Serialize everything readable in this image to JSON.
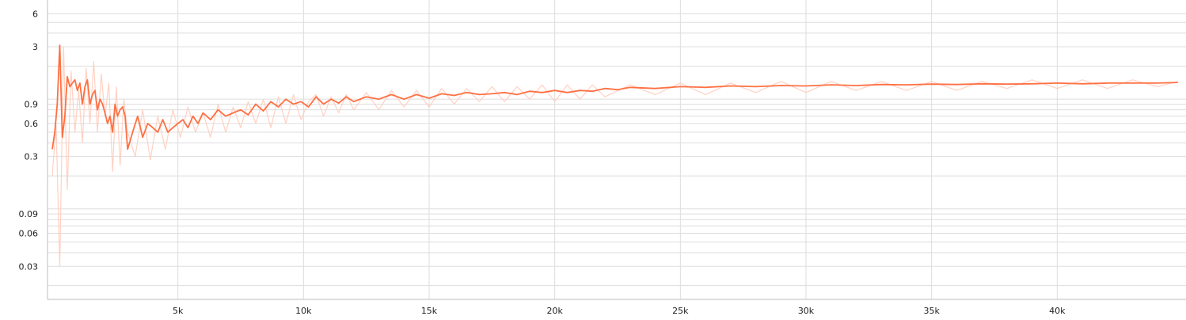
{
  "chart_data": {
    "type": "line",
    "title": "",
    "xlabel": "",
    "ylabel": "",
    "x_scale": "linear",
    "y_scale": "log",
    "xlim": [
      0,
      45000
    ],
    "ylim": [
      0.015,
      8
    ],
    "x_ticks": [
      {
        "value": 5000,
        "label": "5k"
      },
      {
        "value": 10000,
        "label": "10k"
      },
      {
        "value": 15000,
        "label": "15k"
      },
      {
        "value": 20000,
        "label": "20k"
      },
      {
        "value": 25000,
        "label": "25k"
      },
      {
        "value": 30000,
        "label": "30k"
      },
      {
        "value": 35000,
        "label": "35k"
      },
      {
        "value": 40000,
        "label": "40k"
      }
    ],
    "y_ticks": [
      {
        "value": 6,
        "label": "6"
      },
      {
        "value": 3,
        "label": "3"
      },
      {
        "value": 0.9,
        "label": "0.9"
      },
      {
        "value": 0.6,
        "label": "0.6"
      },
      {
        "value": 0.3,
        "label": "0.3"
      },
      {
        "value": 0.09,
        "label": "0.09"
      },
      {
        "value": 0.06,
        "label": "0.06"
      },
      {
        "value": 0.03,
        "label": "0.03"
      }
    ],
    "minor_y_gridlines": [
      5,
      4,
      2,
      1,
      0.8,
      0.7,
      0.5,
      0.4,
      0.2,
      0.1,
      0.08,
      0.07,
      0.05,
      0.04,
      0.02
    ],
    "grid": true,
    "colors": {
      "smoothed": "#ff7043",
      "raw": "#ffccbc",
      "grid": "#dddddd",
      "axis": "#bdbdbd"
    },
    "series": [
      {
        "role": "raw",
        "x": [
          0,
          150,
          300,
          450,
          600,
          750,
          900,
          1050,
          1200,
          1350,
          1500,
          1650,
          1800,
          1950,
          2100,
          2250,
          2400,
          2550,
          2700,
          2850,
          3000,
          3300,
          3600,
          3900,
          4200,
          4500,
          4800,
          5100,
          5400,
          5700,
          6000,
          6300,
          6600,
          6900,
          7200,
          7500,
          7800,
          8100,
          8400,
          8700,
          9000,
          9300,
          9600,
          9900,
          10200,
          10500,
          10800,
          11100,
          11400,
          11700,
          12000,
          12500,
          13000,
          13500,
          14000,
          14500,
          15000,
          15500,
          16000,
          16500,
          17000,
          17500,
          18000,
          18500,
          19000,
          19500,
          20000,
          20500,
          21000,
          21500,
          22000,
          23000,
          24000,
          25000,
          26000,
          27000,
          28000,
          29000,
          30000,
          31000,
          32000,
          33000,
          34000,
          35000,
          36000,
          37000,
          38000,
          39000,
          40000,
          41000,
          42000,
          43000,
          44000,
          44800
        ],
        "y": [
          0.2,
          0.6,
          0.03,
          3.0,
          0.15,
          1.8,
          0.5,
          1.2,
          0.4,
          1.9,
          0.6,
          2.2,
          0.5,
          1.7,
          0.7,
          1.4,
          0.22,
          1.3,
          0.25,
          1.0,
          0.5,
          0.3,
          0.8,
          0.28,
          0.7,
          0.35,
          0.8,
          0.45,
          0.85,
          0.5,
          0.75,
          0.45,
          0.9,
          0.5,
          0.85,
          0.55,
          0.95,
          0.6,
          1.0,
          0.55,
          1.05,
          0.6,
          1.1,
          0.65,
          0.95,
          1.1,
          0.7,
          1.05,
          0.75,
          1.1,
          0.8,
          1.15,
          0.8,
          1.2,
          0.85,
          1.2,
          0.85,
          1.25,
          0.9,
          1.25,
          0.95,
          1.3,
          0.95,
          1.3,
          1.0,
          1.35,
          0.95,
          1.35,
          1.0,
          1.35,
          1.05,
          1.35,
          1.1,
          1.4,
          1.1,
          1.4,
          1.15,
          1.45,
          1.15,
          1.45,
          1.2,
          1.45,
          1.2,
          1.45,
          1.2,
          1.45,
          1.25,
          1.5,
          1.25,
          1.5,
          1.25,
          1.5,
          1.3,
          1.45
        ]
      },
      {
        "role": "smoothed",
        "x": [
          0,
          100,
          200,
          300,
          400,
          500,
          600,
          700,
          800,
          900,
          1000,
          1100,
          1200,
          1300,
          1400,
          1500,
          1600,
          1700,
          1800,
          1900,
          2000,
          2100,
          2200,
          2300,
          2400,
          2500,
          2600,
          2700,
          2800,
          2900,
          3000,
          3200,
          3400,
          3600,
          3800,
          4000,
          4200,
          4400,
          4600,
          4800,
          5000,
          5200,
          5400,
          5600,
          5800,
          6000,
          6300,
          6600,
          6900,
          7200,
          7500,
          7800,
          8100,
          8400,
          8700,
          9000,
          9300,
          9600,
          9900,
          10200,
          10500,
          10800,
          11100,
          11400,
          11700,
          12000,
          12500,
          13000,
          13500,
          14000,
          14500,
          15000,
          15500,
          16000,
          16500,
          17000,
          17500,
          18000,
          18500,
          19000,
          19500,
          20000,
          20500,
          21000,
          21500,
          22000,
          22500,
          23000,
          24000,
          25000,
          26000,
          27000,
          28000,
          29000,
          30000,
          31000,
          32000,
          33000,
          34000,
          35000,
          36000,
          37000,
          38000,
          39000,
          40000,
          41000,
          42000,
          43000,
          44000,
          44800
        ],
        "y": [
          0.35,
          0.5,
          0.9,
          3.1,
          0.45,
          0.7,
          1.6,
          1.3,
          1.4,
          1.5,
          1.2,
          1.4,
          0.9,
          1.3,
          1.5,
          0.9,
          1.1,
          1.2,
          0.8,
          1.0,
          0.9,
          0.75,
          0.6,
          0.7,
          0.5,
          0.9,
          0.7,
          0.8,
          0.85,
          0.7,
          0.35,
          0.5,
          0.7,
          0.45,
          0.6,
          0.55,
          0.5,
          0.65,
          0.5,
          0.55,
          0.6,
          0.65,
          0.55,
          0.7,
          0.6,
          0.75,
          0.65,
          0.8,
          0.7,
          0.75,
          0.8,
          0.72,
          0.9,
          0.78,
          0.95,
          0.85,
          1.0,
          0.9,
          0.95,
          0.85,
          1.05,
          0.9,
          1.0,
          0.92,
          1.05,
          0.95,
          1.05,
          1.0,
          1.1,
          1.0,
          1.1,
          1.02,
          1.12,
          1.08,
          1.15,
          1.1,
          1.12,
          1.15,
          1.1,
          1.18,
          1.15,
          1.2,
          1.15,
          1.2,
          1.18,
          1.25,
          1.22,
          1.28,
          1.25,
          1.3,
          1.28,
          1.32,
          1.3,
          1.33,
          1.32,
          1.35,
          1.33,
          1.36,
          1.35,
          1.37,
          1.36,
          1.38,
          1.37,
          1.38,
          1.4,
          1.38,
          1.4,
          1.4,
          1.4,
          1.42
        ]
      }
    ]
  }
}
